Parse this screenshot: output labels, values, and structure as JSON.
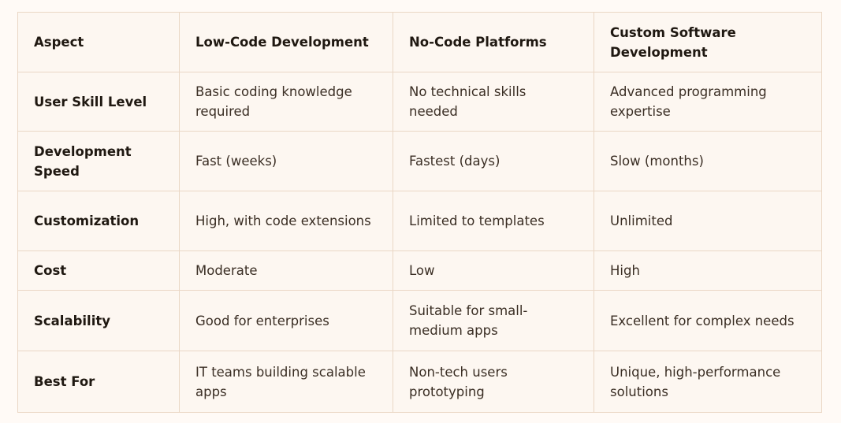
{
  "table": {
    "headers": [
      "Aspect",
      "Low-Code Development",
      "No-Code Platforms",
      "Custom Software Development"
    ],
    "rows": [
      [
        "User Skill Level",
        "Basic coding knowledge required",
        "No technical skills needed",
        "Advanced programming expertise"
      ],
      [
        "Development Speed",
        "Fast (weeks)",
        "Fastest (days)",
        "Slow (months)"
      ],
      [
        "Customization",
        "High, with code extensions",
        "Limited to templates",
        "Unlimited"
      ],
      [
        "Cost",
        "Moderate",
        "Low",
        "High"
      ],
      [
        "Scalability",
        "Good for enterprises",
        "Suitable for small-medium apps",
        "Excellent for complex needs"
      ],
      [
        "Best For",
        "IT teams building scalable apps",
        "Non-tech users prototyping",
        "Unique, high-performance solutions"
      ]
    ]
  },
  "colors": {
    "page_background": "#fffaf6",
    "table_background": "#fdf7f1",
    "border": "#ead7c5",
    "text": "#2b2118"
  }
}
